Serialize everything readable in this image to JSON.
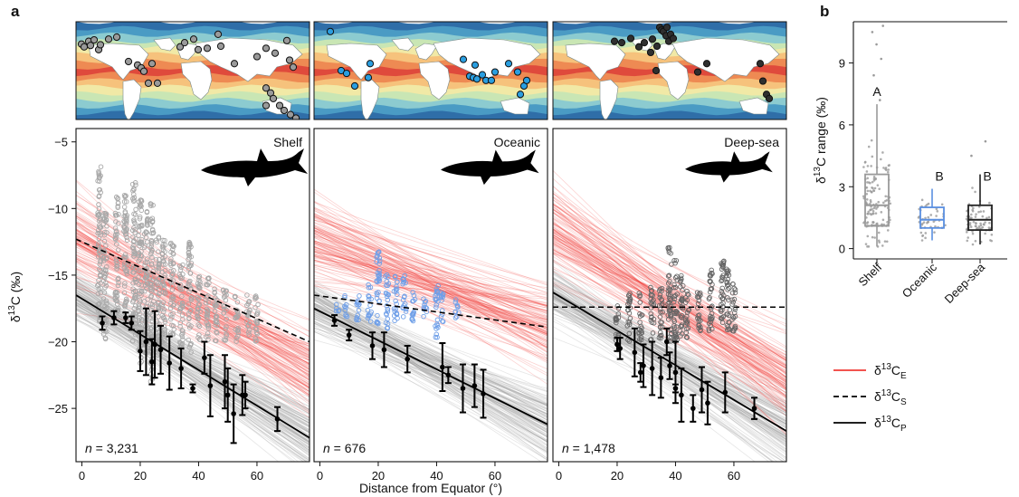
{
  "panel_labels": {
    "a": "a",
    "b": "b"
  },
  "legend": [
    {
      "base": "δ",
      "sup": "13",
      "mid": "C",
      "sub": "E",
      "color": "#f03c36",
      "style": "solid"
    },
    {
      "base": "δ",
      "sup": "13",
      "mid": "C",
      "sub": "S",
      "color": "#000000",
      "style": "dashed"
    },
    {
      "base": "δ",
      "sup": "13",
      "mid": "C",
      "sub": "P",
      "color": "#000000",
      "style": "solid"
    }
  ],
  "chart_data": [
    {
      "type": "scatter",
      "xlabel": "Distance from Equator (°)",
      "ylabel": {
        "base": "δ",
        "sup": "13",
        "rest": "C (‰)"
      },
      "xlim": [
        -2,
        78
      ],
      "ylim": [
        -29,
        -4
      ],
      "xticks": [
        0,
        20,
        40,
        60
      ],
      "yticks": [
        -5,
        -10,
        -15,
        -20,
        -25
      ],
      "map_legend": "sea-surface temperature bands (red = warm, blue = cold)",
      "panels": [
        {
          "title": "Shelf",
          "n_label": {
            "italic": "n",
            "text": " = 3,231"
          },
          "point_color": "#a8a8a8",
          "site_color": "#9a9a9a",
          "sites": [
            [
              6,
              32
            ],
            [
              9,
              36
            ],
            [
              14,
              28
            ],
            [
              16,
              34
            ],
            [
              20,
              26
            ],
            [
              25,
              40
            ],
            [
              27,
              33
            ],
            [
              36,
              25
            ],
            [
              45,
              22
            ],
            [
              58,
              57
            ],
            [
              68,
              62
            ],
            [
              72,
              66
            ],
            [
              75,
              71
            ],
            [
              80,
              88
            ],
            [
              84,
              60
            ],
            [
              90,
              88
            ],
            [
              115,
              36
            ],
            [
              120,
              30
            ],
            [
              130,
              25
            ],
            [
              135,
              40
            ],
            [
              145,
              38
            ],
            [
              157,
              18
            ],
            [
              160,
              35
            ],
            [
              175,
              60
            ],
            [
              200,
              50
            ],
            [
              210,
              38
            ],
            [
              220,
              45
            ],
            [
              233,
              27
            ],
            [
              236,
              55
            ],
            [
              240,
              65
            ],
            [
              210,
              95
            ],
            [
              215,
              102
            ],
            [
              218,
              110
            ],
            [
              225,
              120
            ],
            [
              230,
              127
            ],
            [
              237,
              133
            ],
            [
              243,
              138
            ],
            [
              210,
              120
            ]
          ],
          "clusters": [
            {
              "x": 6,
              "ymin": -18.5,
              "ymax": -6.5
            },
            {
              "x": 8,
              "ymin": -20,
              "ymax": -10
            },
            {
              "x": 12,
              "ymin": -18,
              "ymax": -9
            },
            {
              "x": 15,
              "ymin": -18,
              "ymax": -9
            },
            {
              "x": 18,
              "ymin": -20,
              "ymax": -8
            },
            {
              "x": 20,
              "ymin": -22,
              "ymax": -9
            },
            {
              "x": 22,
              "ymin": -21,
              "ymax": -10
            },
            {
              "x": 24,
              "ymin": -23,
              "ymax": -9.5
            },
            {
              "x": 26,
              "ymin": -21,
              "ymax": -12
            },
            {
              "x": 28,
              "ymin": -20,
              "ymax": -12
            },
            {
              "x": 31,
              "ymin": -20,
              "ymax": -12.5
            },
            {
              "x": 34,
              "ymin": -21,
              "ymax": -14
            },
            {
              "x": 37,
              "ymin": -21,
              "ymax": -12.5
            },
            {
              "x": 40,
              "ymin": -20,
              "ymax": -15
            },
            {
              "x": 43,
              "ymin": -20,
              "ymax": -15
            },
            {
              "x": 46,
              "ymin": -20,
              "ymax": -16
            },
            {
              "x": 49,
              "ymin": -20,
              "ymax": -16
            },
            {
              "x": 53,
              "ymin": -20,
              "ymax": -16.5
            },
            {
              "x": 57,
              "ymin": -20,
              "ymax": -16.5
            },
            {
              "x": 60,
              "ymin": -20,
              "ymax": -16.5
            }
          ],
          "baseline_line": {
            "y0": -16.5,
            "y1": -27.2
          },
          "species_line": {
            "y0": -12.3,
            "y1": -20
          },
          "env_line": {
            "y0": -12.3,
            "y1": -22
          },
          "means": [
            {
              "x": 7,
              "y": -18.6,
              "err": 0.5
            },
            {
              "x": 11,
              "y": -18.2,
              "err": 0.5
            },
            {
              "x": 15,
              "y": -18.2,
              "err": 0.4
            },
            {
              "x": 17,
              "y": -18.6,
              "err": 0.5
            },
            {
              "x": 20,
              "y": -20.7,
              "err": 1.5
            },
            {
              "x": 22,
              "y": -20.0,
              "err": 2.5
            },
            {
              "x": 24,
              "y": -21.5,
              "err": 1.7
            },
            {
              "x": 25,
              "y": -20.2,
              "err": 2.5
            },
            {
              "x": 27,
              "y": -20.6,
              "err": 1.8
            },
            {
              "x": 30,
              "y": -21.6,
              "err": 2.0
            },
            {
              "x": 34,
              "y": -22.0,
              "err": 1.5
            },
            {
              "x": 38,
              "y": -23.5,
              "err": 0.3
            },
            {
              "x": 42,
              "y": -21.2,
              "err": 1.2
            },
            {
              "x": 44,
              "y": -23.3,
              "err": 2.3
            },
            {
              "x": 49,
              "y": -23.0,
              "err": 2.0
            },
            {
              "x": 50,
              "y": -24.0,
              "err": 2.0
            },
            {
              "x": 52,
              "y": -25.4,
              "err": 2.2
            },
            {
              "x": 55,
              "y": -24.0,
              "err": 1.5
            },
            {
              "x": 56,
              "y": -24.0,
              "err": 1.0
            },
            {
              "x": 67,
              "y": -25.8,
              "err": 0.9
            }
          ]
        },
        {
          "title": "Oceanic",
          "n_label": {
            "italic": "n",
            "text": " = 676"
          },
          "point_color": "#6f9fe8",
          "site_color": "#2a9ee0",
          "sites": [
            [
              18,
              14
            ],
            [
              30,
              70
            ],
            [
              36,
              74
            ],
            [
              60,
              80
            ],
            [
              62,
              60
            ],
            [
              45,
              92
            ],
            [
              165,
              54
            ],
            [
              172,
              78
            ],
            [
              176,
              80
            ],
            [
              178,
              62
            ],
            [
              180,
              82
            ],
            [
              186,
              76
            ],
            [
              190,
              84
            ],
            [
              196,
              84
            ],
            [
              200,
              72
            ],
            [
              215,
              60
            ],
            [
              225,
              72
            ],
            [
              228,
              104
            ],
            [
              232,
              92
            ],
            [
              235,
              84
            ]
          ],
          "clusters": [
            {
              "x": 6,
              "ymin": -17.8,
              "ymax": -17
            },
            {
              "x": 9,
              "ymin": -18.2,
              "ymax": -16.5
            },
            {
              "x": 13,
              "ymin": -18.5,
              "ymax": -16.3
            },
            {
              "x": 17,
              "ymin": -18.5,
              "ymax": -15.7
            },
            {
              "x": 20,
              "ymin": -18.7,
              "ymax": -13.2
            },
            {
              "x": 23,
              "ymin": -19,
              "ymax": -14.8
            },
            {
              "x": 26,
              "ymin": -18.5,
              "ymax": -15
            },
            {
              "x": 29,
              "ymin": -18.2,
              "ymax": -15
            },
            {
              "x": 32,
              "ymin": -18.5,
              "ymax": -16.2
            },
            {
              "x": 36,
              "ymin": -18.3,
              "ymax": -16.7
            },
            {
              "x": 40,
              "ymin": -19.7,
              "ymax": -15.8
            },
            {
              "x": 42,
              "ymin": -18.5,
              "ymax": -16.2
            },
            {
              "x": 47,
              "ymin": -18.5,
              "ymax": -16.8
            }
          ],
          "baseline_line": {
            "y0": -17.5,
            "y1": -26.2
          },
          "species_line": {
            "y0": -16.5,
            "y1": -18.9
          },
          "env_line": {
            "y0": -12.2,
            "y1": -19
          },
          "means": [
            {
              "x": 5,
              "y": -18.4,
              "err": 0.4
            },
            {
              "x": 10,
              "y": -19.5,
              "err": 0.4
            },
            {
              "x": 18,
              "y": -20.3,
              "err": 1.0
            },
            {
              "x": 22,
              "y": -20.6,
              "err": 1.3
            },
            {
              "x": 30,
              "y": -21.3,
              "err": 1.0
            },
            {
              "x": 42,
              "y": -21.9,
              "err": 1.8
            },
            {
              "x": 44,
              "y": -22.5,
              "err": 0.6
            },
            {
              "x": 49,
              "y": -23.5,
              "err": 1.8
            },
            {
              "x": 53,
              "y": -23.3,
              "err": 1.6
            },
            {
              "x": 56,
              "y": -23.9,
              "err": 1.8
            }
          ]
        },
        {
          "title": "Deep-sea",
          "n_label": {
            "italic": "n",
            "text": " = 1,478"
          },
          "point_color": "#666666",
          "site_color": "#2f2f2f",
          "sites": [
            [
              68,
              28
            ],
            [
              76,
              30
            ],
            [
              86,
              24
            ],
            [
              95,
              36
            ],
            [
              101,
              30
            ],
            [
              118,
              8
            ],
            [
              120,
              12
            ],
            [
              122,
              14
            ],
            [
              125,
              20
            ],
            [
              126,
              8
            ],
            [
              128,
              28
            ],
            [
              130,
              18
            ],
            [
              133,
              24
            ],
            [
              110,
              25
            ],
            [
              115,
              35
            ],
            [
              108,
              44
            ],
            [
              114,
              70
            ],
            [
              160,
              72
            ],
            [
              170,
              60
            ],
            [
              229,
              60
            ],
            [
              232,
              85
            ],
            [
              236,
              104
            ],
            [
              239,
              110
            ]
          ],
          "clusters": [
            {
              "x": 20,
              "ymin": -20,
              "ymax": -17.2
            },
            {
              "x": 24,
              "ymin": -20,
              "ymax": -16.3
            },
            {
              "x": 28,
              "ymin": -20,
              "ymax": -16.3
            },
            {
              "x": 32,
              "ymin": -20,
              "ymax": -15.9
            },
            {
              "x": 35,
              "ymin": -20,
              "ymax": -15.9
            },
            {
              "x": 38,
              "ymin": -20,
              "ymax": -12.8
            },
            {
              "x": 40,
              "ymin": -20,
              "ymax": -13.8
            },
            {
              "x": 42,
              "ymin": -19.6,
              "ymax": -15
            },
            {
              "x": 44,
              "ymin": -19.7,
              "ymax": -16
            },
            {
              "x": 48,
              "ymin": -19.7,
              "ymax": -16
            },
            {
              "x": 52,
              "ymin": -19.6,
              "ymax": -14.5
            },
            {
              "x": 56,
              "ymin": -19.4,
              "ymax": -13.8
            },
            {
              "x": 58,
              "ymin": -19.2,
              "ymax": -14.5
            },
            {
              "x": 60,
              "ymin": -19.3,
              "ymax": -15.4
            }
          ],
          "baseline_line": {
            "y0": -16.3,
            "y1": -26.7
          },
          "species_line": {
            "y0": -17.4,
            "y1": -17.4
          },
          "env_line": {
            "y0": -11.5,
            "y1": -23
          },
          "means": [
            {
              "x": 20,
              "y": -20.2,
              "err": 0.5
            },
            {
              "x": 21,
              "y": -20.5,
              "err": 0.8
            },
            {
              "x": 26,
              "y": -20.8,
              "err": 1.8
            },
            {
              "x": 28,
              "y": -22.3,
              "err": 0.7
            },
            {
              "x": 29,
              "y": -21.8,
              "err": 1.6
            },
            {
              "x": 32,
              "y": -22.0,
              "err": 2.0
            },
            {
              "x": 35,
              "y": -22.7,
              "err": 1.5
            },
            {
              "x": 37,
              "y": -20.0,
              "err": 1.0
            },
            {
              "x": 38,
              "y": -21.8,
              "err": 1.0
            },
            {
              "x": 40,
              "y": -22.3,
              "err": 2.3
            },
            {
              "x": 40,
              "y": -23.5,
              "err": 0.3
            },
            {
              "x": 42,
              "y": -24.0,
              "err": 2.0
            },
            {
              "x": 46,
              "y": -25.0,
              "err": 1.0
            },
            {
              "x": 49,
              "y": -23.6,
              "err": 1.7
            },
            {
              "x": 51,
              "y": -24.6,
              "err": 1.6
            },
            {
              "x": 57,
              "y": -23.8,
              "err": 1.5
            },
            {
              "x": 67,
              "y": -25.0,
              "err": 0.8
            }
          ]
        }
      ]
    },
    {
      "type": "box",
      "ylabel": {
        "base": "δ",
        "sup": "13",
        "rest": "C range (‰)"
      },
      "ylim": [
        -0.5,
        11
      ],
      "yticks": [
        0,
        3,
        6,
        9
      ],
      "categories": [
        "Shelf",
        "Oceanic",
        "Deep-sea"
      ],
      "boxes": [
        {
          "name": "Shelf",
          "color": "#9a9a9a",
          "q1": 1.1,
          "median": 2.1,
          "q3": 3.6,
          "whisker_low": 0.1,
          "whisker_high": 7.0,
          "letter": "A",
          "outliers": [
            7.2,
            7.7,
            8.4,
            9.2,
            9.9,
            10.5,
            10.8
          ]
        },
        {
          "name": "Oceanic",
          "color": "#5a8fe0",
          "q1": 1.0,
          "median": 1.4,
          "q3": 2.0,
          "whisker_low": 0.4,
          "whisker_high": 2.9,
          "letter": "B",
          "outliers": []
        },
        {
          "name": "Deep-sea",
          "color": "#222222",
          "q1": 0.9,
          "median": 1.4,
          "q3": 2.1,
          "whisker_low": 0.2,
          "whisker_high": 3.6,
          "letter": "B",
          "outliers": [
            4.5,
            5.2
          ]
        }
      ]
    }
  ]
}
